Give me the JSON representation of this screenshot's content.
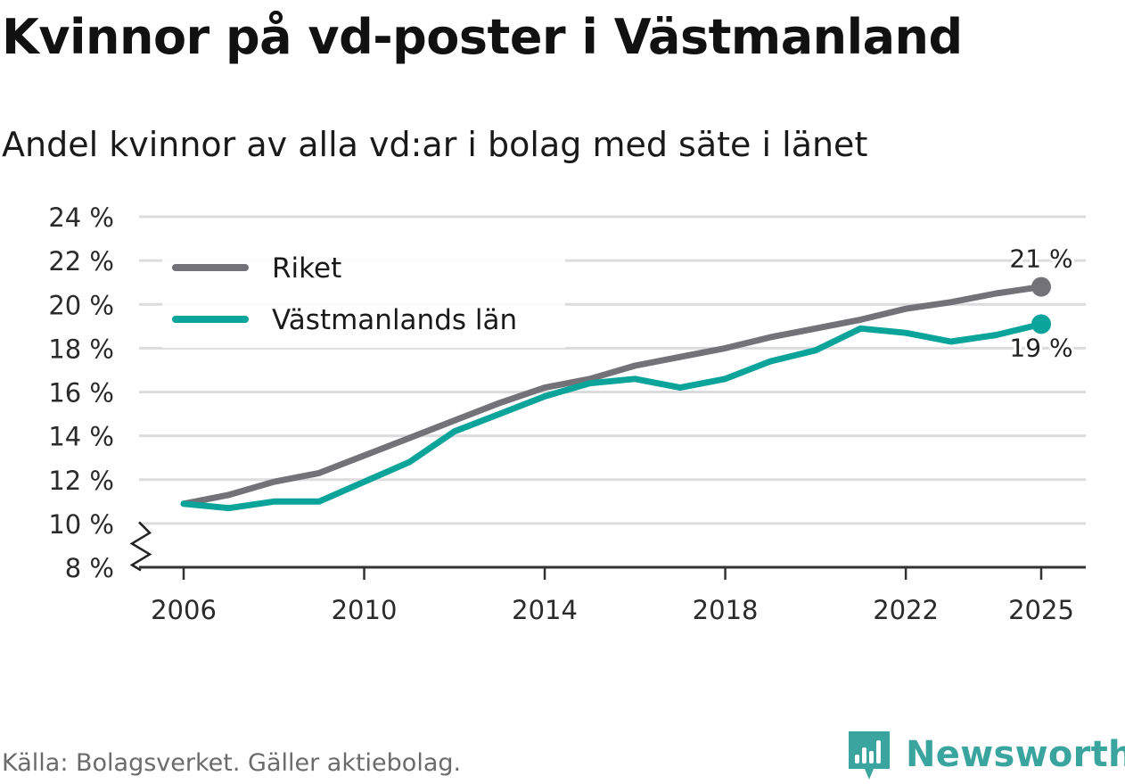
{
  "title": "Kvinnor på vd-poster i Västmanland",
  "subtitle": "Andel kvinnor av alla vd:ar i bolag med säte i länet",
  "source": "Källa: Bolagsverket. Gäller aktiebolag.",
  "brand": "Newsworthy",
  "colors": {
    "riket": "#737278",
    "lan": "#0ba49b",
    "grid": "#dcdcdc",
    "axis": "#333333",
    "brand": "#3aa59e"
  },
  "chart_data": {
    "type": "line",
    "title": "Kvinnor på vd-poster i Västmanland",
    "subtitle": "Andel kvinnor av alla vd:ar i bolag med säte i länet",
    "xlabel": "",
    "ylabel": "",
    "x": [
      2006,
      2007,
      2008,
      2009,
      2010,
      2011,
      2012,
      2013,
      2014,
      2015,
      2016,
      2017,
      2018,
      2019,
      2020,
      2021,
      2022,
      2023,
      2024,
      2025
    ],
    "xticks": [
      2006,
      2010,
      2014,
      2018,
      2022,
      2025
    ],
    "xtick_labels": [
      "2006",
      "2010",
      "2014",
      "2018",
      "2022",
      "2025"
    ],
    "ylim": [
      8,
      24
    ],
    "yticks": [
      8,
      10,
      12,
      14,
      16,
      18,
      20,
      22,
      24
    ],
    "ytick_labels": [
      "8 %",
      "10 %",
      "12 %",
      "14 %",
      "16 %",
      "18 %",
      "20 %",
      "22 %",
      "24 %"
    ],
    "axis_break": true,
    "grid": true,
    "legend_position": "top-left",
    "series": [
      {
        "key": "riket",
        "name": "Riket",
        "values": [
          10.9,
          11.3,
          11.9,
          12.3,
          13.1,
          13.9,
          14.7,
          15.5,
          16.2,
          16.6,
          17.2,
          17.6,
          18.0,
          18.5,
          18.9,
          19.3,
          19.8,
          20.1,
          20.5,
          20.8
        ],
        "end_label": "21 %",
        "end_label_position": "above"
      },
      {
        "key": "lan",
        "name": "Västmanlands län",
        "values": [
          10.9,
          10.7,
          11.0,
          11.0,
          11.9,
          12.8,
          14.2,
          15.0,
          15.8,
          16.4,
          16.6,
          16.2,
          16.6,
          17.4,
          17.9,
          18.9,
          18.7,
          18.3,
          18.6,
          19.1
        ],
        "end_label": "19 %",
        "end_label_position": "below"
      }
    ]
  }
}
